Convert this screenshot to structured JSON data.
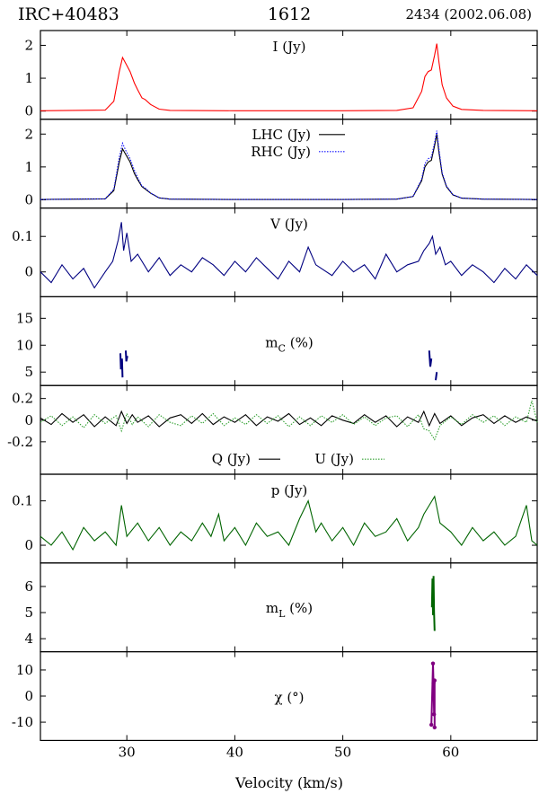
{
  "header": {
    "source": "IRC+40483",
    "line": "1612",
    "epoch": "2434 (2002.06.08)"
  },
  "chart_data": {
    "type": "line",
    "xlabel": "Velocity (km/s)",
    "xlim": [
      22,
      68
    ],
    "xticks": [
      30,
      40,
      50,
      60
    ],
    "panels": [
      {
        "id": "I",
        "label": "I (Jy)",
        "ylim": [
          -0.25,
          2.45
        ],
        "yticks": [
          0,
          1,
          2
        ],
        "series": [
          {
            "name": "I (Jy)",
            "color": "#ff0000",
            "style": "solid",
            "x": [
              22,
              28.0,
              28.8,
              29.3,
              29.6,
              29.9,
              30.3,
              30.7,
              31.0,
              31.4,
              31.7,
              32.2,
              33.0,
              34,
              40,
              50,
              55,
              56.5,
              57.3,
              57.6,
              57.9,
              58.2,
              58.5,
              58.7,
              58.9,
              59.2,
              59.6,
              60.2,
              61,
              63,
              68
            ],
            "y": [
              0.01,
              0.03,
              0.3,
              1.2,
              1.63,
              1.45,
              1.2,
              0.85,
              0.65,
              0.4,
              0.35,
              0.2,
              0.06,
              0.02,
              0.01,
              0.01,
              0.02,
              0.1,
              0.6,
              1.05,
              1.2,
              1.25,
              1.7,
              2.05,
              1.5,
              0.8,
              0.4,
              0.15,
              0.05,
              0.02,
              0.01
            ]
          }
        ]
      },
      {
        "id": "LR",
        "label": "",
        "ylim": [
          -0.25,
          2.45
        ],
        "yticks": [
          0,
          1,
          2
        ],
        "series": [
          {
            "name": "LHC (Jy)",
            "color": "#000000",
            "style": "solid",
            "x": [
              22,
              28.0,
              28.8,
              29.3,
              29.6,
              29.9,
              30.3,
              30.7,
              31.0,
              31.4,
              31.7,
              32.2,
              33.0,
              34,
              40,
              50,
              55,
              56.5,
              57.3,
              57.6,
              57.9,
              58.2,
              58.5,
              58.7,
              58.9,
              59.2,
              59.6,
              60.2,
              61,
              63,
              68
            ],
            "y": [
              0.01,
              0.03,
              0.28,
              1.15,
              1.55,
              1.38,
              1.15,
              0.8,
              0.62,
              0.4,
              0.33,
              0.2,
              0.06,
              0.02,
              0.01,
              0.01,
              0.02,
              0.1,
              0.58,
              1.0,
              1.15,
              1.2,
              1.65,
              2.0,
              1.45,
              0.78,
              0.4,
              0.15,
              0.05,
              0.02,
              0.01
            ]
          },
          {
            "name": "RHC (Jy)",
            "color": "#1010ff",
            "style": "dotted",
            "x": [
              22,
              28.0,
              28.8,
              29.3,
              29.6,
              29.9,
              30.3,
              30.7,
              31.0,
              31.4,
              31.7,
              32.2,
              33.0,
              34,
              40,
              50,
              55,
              56.5,
              57.3,
              57.6,
              57.9,
              58.2,
              58.5,
              58.7,
              58.9,
              59.2,
              59.6,
              60.2,
              61,
              63,
              68
            ],
            "y": [
              0.01,
              0.03,
              0.32,
              1.3,
              1.72,
              1.5,
              1.25,
              0.9,
              0.68,
              0.42,
              0.36,
              0.21,
              0.06,
              0.02,
              0.01,
              0.01,
              0.02,
              0.1,
              0.63,
              1.1,
              1.25,
              1.3,
              1.75,
              2.1,
              1.55,
              0.82,
              0.42,
              0.16,
              0.05,
              0.02,
              0.01
            ]
          }
        ]
      },
      {
        "id": "V",
        "label": "V (Jy)",
        "ylim": [
          -0.07,
          0.18
        ],
        "yticks": [
          0,
          0.1
        ],
        "series": [
          {
            "name": "V (Jy)",
            "color": "#000080",
            "style": "solid",
            "x": [
              22,
              23,
              24,
              25,
              26,
              27,
              28,
              28.7,
              29.2,
              29.5,
              29.7,
              30.0,
              30.4,
              31,
              32,
              33,
              34,
              35,
              36,
              37,
              38,
              39,
              40,
              41,
              42,
              43,
              44,
              45,
              46,
              46.8,
              47.5,
              48,
              49,
              50,
              51,
              52,
              53,
              54,
              55,
              56,
              57,
              57.5,
              58,
              58.3,
              58.6,
              59,
              59.5,
              60,
              61,
              62,
              63,
              64,
              65,
              66,
              67,
              68
            ],
            "y": [
              0.0,
              -0.03,
              0.02,
              -0.02,
              0.01,
              -0.045,
              0.0,
              0.03,
              0.09,
              0.14,
              0.06,
              0.11,
              0.03,
              0.05,
              0.0,
              0.04,
              -0.01,
              0.02,
              0.0,
              0.04,
              0.02,
              -0.01,
              0.03,
              0.0,
              0.04,
              0.01,
              -0.02,
              0.03,
              0.0,
              0.07,
              0.02,
              0.01,
              -0.01,
              0.03,
              0.0,
              0.02,
              -0.02,
              0.05,
              0.0,
              0.02,
              0.03,
              0.06,
              0.08,
              0.1,
              0.05,
              0.07,
              0.02,
              0.03,
              -0.01,
              0.02,
              0.0,
              -0.03,
              0.01,
              -0.02,
              0.02,
              -0.01
            ]
          }
        ]
      },
      {
        "id": "mC",
        "label": "m",
        "label_sub": "C",
        "label_suffix": " (%)",
        "ylim": [
          2.5,
          19
        ],
        "yticks": [
          5,
          10,
          15
        ],
        "segments": [
          {
            "color": "#000080",
            "x": [
              29.4,
              29.45,
              29.55,
              29.6
            ],
            "y": [
              8.5,
              5.5,
              7.5,
              4.0
            ]
          },
          {
            "color": "#000080",
            "x": [
              29.9,
              29.95,
              30.05
            ],
            "y": [
              9.0,
              7.0,
              8.0
            ]
          },
          {
            "color": "#000080",
            "x": [
              58.0,
              58.1,
              58.2
            ],
            "y": [
              9.0,
              6.0,
              7.5
            ]
          },
          {
            "color": "#000080",
            "x": [
              58.6,
              58.7
            ],
            "y": [
              3.5,
              5.0
            ]
          }
        ]
      },
      {
        "id": "QU",
        "label": "",
        "ylim": [
          -0.5,
          0.32
        ],
        "yticks": [
          -0.2,
          0,
          0.2
        ],
        "series": [
          {
            "name": "Q (Jy)",
            "color": "#000000",
            "style": "solid",
            "x": [
              22,
              23,
              24,
              25,
              26,
              27,
              28,
              29,
              29.5,
              30,
              30.5,
              31,
              32,
              33,
              34,
              35,
              36,
              37,
              38,
              39,
              40,
              41,
              42,
              43,
              44,
              45,
              46,
              47,
              48,
              49,
              50,
              51,
              52,
              53,
              54,
              55,
              56,
              57,
              57.5,
              58,
              58.5,
              59,
              60,
              61,
              62,
              63,
              64,
              65,
              66,
              67,
              68
            ],
            "y": [
              0.02,
              -0.04,
              0.06,
              -0.02,
              0.05,
              -0.06,
              0.03,
              -0.05,
              0.08,
              -0.03,
              0.05,
              -0.02,
              0.04,
              -0.06,
              0.02,
              0.05,
              -0.03,
              0.06,
              -0.04,
              0.03,
              -0.02,
              0.05,
              -0.05,
              0.03,
              -0.01,
              0.06,
              -0.04,
              0.02,
              -0.05,
              0.04,
              0.0,
              -0.03,
              0.05,
              -0.02,
              0.04,
              -0.06,
              0.03,
              -0.02,
              0.08,
              -0.05,
              0.06,
              -0.03,
              0.04,
              -0.05,
              0.02,
              0.05,
              -0.03,
              0.04,
              -0.02,
              0.03,
              -0.01
            ]
          },
          {
            "name": "U (Jy)",
            "color": "#30a030",
            "style": "dotted",
            "x": [
              22,
              23,
              24,
              25,
              26,
              27,
              28,
              29,
              29.5,
              30,
              30.5,
              31,
              32,
              33,
              34,
              35,
              36,
              37,
              38,
              39,
              40,
              41,
              42,
              43,
              44,
              45,
              46,
              47,
              48,
              49,
              50,
              51,
              52,
              53,
              54,
              55,
              56,
              57,
              57.5,
              58,
              58.5,
              59,
              60,
              61,
              62,
              63,
              64,
              65,
              66,
              67,
              67.5,
              68
            ],
            "y": [
              -0.02,
              0.04,
              -0.05,
              0.03,
              -0.07,
              0.05,
              -0.03,
              0.04,
              -0.1,
              0.06,
              -0.04,
              0.03,
              -0.06,
              0.05,
              -0.02,
              -0.05,
              0.04,
              -0.03,
              0.06,
              -0.05,
              0.02,
              -0.04,
              0.05,
              -0.03,
              0.04,
              -0.06,
              0.03,
              -0.05,
              0.04,
              -0.02,
              0.05,
              -0.04,
              0.03,
              -0.05,
              0.02,
              0.04,
              -0.06,
              0.05,
              -0.08,
              -0.1,
              -0.18,
              -0.05,
              0.03,
              -0.04,
              0.05,
              -0.02,
              0.04,
              -0.05,
              0.03,
              -0.02,
              0.18,
              -0.02
            ]
          }
        ]
      },
      {
        "id": "p",
        "label": "p (Jy)",
        "ylim": [
          -0.04,
          0.16
        ],
        "yticks": [
          0,
          0.1
        ],
        "series": [
          {
            "name": "p (Jy)",
            "color": "#006400",
            "style": "solid",
            "x": [
              22,
              23,
              24,
              25,
              26,
              27,
              28,
              29,
              29.5,
              30,
              31,
              32,
              33,
              34,
              35,
              36,
              37,
              37.8,
              38.5,
              39,
              40,
              41,
              42,
              43,
              44,
              45,
              46,
              46.8,
              47.5,
              48,
              49,
              50,
              51,
              52,
              53,
              54,
              55,
              56,
              57,
              57.5,
              58,
              58.5,
              59,
              60,
              61,
              62,
              63,
              64,
              65,
              66,
              67,
              67.5,
              68
            ],
            "y": [
              0.02,
              0.0,
              0.03,
              -0.01,
              0.04,
              0.01,
              0.03,
              0.0,
              0.09,
              0.02,
              0.05,
              0.01,
              0.04,
              0.0,
              0.03,
              0.01,
              0.05,
              0.02,
              0.07,
              0.01,
              0.04,
              0.0,
              0.05,
              0.02,
              0.03,
              0.0,
              0.06,
              0.1,
              0.03,
              0.05,
              0.01,
              0.04,
              0.0,
              0.05,
              0.02,
              0.03,
              0.06,
              0.01,
              0.04,
              0.07,
              0.09,
              0.11,
              0.05,
              0.03,
              0.0,
              0.04,
              0.01,
              0.03,
              0.0,
              0.02,
              0.09,
              0.01,
              0.0
            ]
          }
        ]
      },
      {
        "id": "mL",
        "label": "m",
        "label_sub": "L",
        "label_suffix": " (%)",
        "ylim": [
          3.5,
          6.9
        ],
        "yticks": [
          4,
          5,
          6
        ],
        "segments": [
          {
            "color": "#006400",
            "x": [
              58.25,
              58.3,
              58.35,
              58.4,
              58.45,
              58.5
            ],
            "y": [
              5.2,
              6.3,
              4.9,
              6.4,
              5.0,
              4.3
            ]
          }
        ]
      },
      {
        "id": "chi",
        "label": "χ (°)",
        "ylim": [
          -17,
          17
        ],
        "yticks": [
          -10,
          0,
          10
        ],
        "segments": [
          {
            "color": "#800080",
            "markers": true,
            "x": [
              58.2,
              58.35,
              58.4,
              58.45,
              58.5,
              58.5
            ],
            "y": [
              -11,
              12.5,
              5,
              -7,
              6,
              -12
            ]
          }
        ]
      }
    ]
  }
}
